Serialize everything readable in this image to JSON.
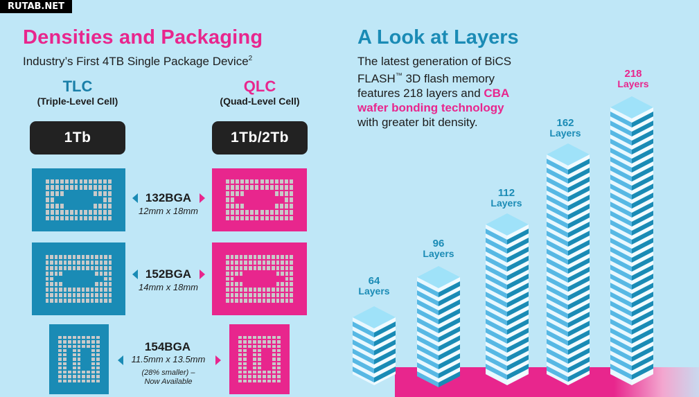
{
  "watermark": "RUTAB.NET",
  "left": {
    "title": "Densities and Packaging",
    "subtitle": "Industry’s First 4TB Single Package Device",
    "subtitle_sup": "2",
    "tlc": {
      "name": "TLC",
      "desc": "(Triple-Level Cell)",
      "capacity": "1Tb",
      "color": "#1a8bb5"
    },
    "qlc": {
      "name": "QLC",
      "desc": "(Quad-Level Cell)",
      "capacity": "1Tb/2Tb",
      "color": "#e8268d"
    },
    "packages": [
      {
        "name": "132BGA",
        "dims": "12mm x 18mm",
        "note": ""
      },
      {
        "name": "152BGA",
        "dims": "14mm x 18mm",
        "note": ""
      },
      {
        "name": "154BGA",
        "dims": "11.5mm x 13.5mm",
        "note": "(28% smaller) –",
        "note2": "Now Available"
      }
    ]
  },
  "right": {
    "title": "A Look at Layers",
    "text_line1": "The latest generation of BiCS",
    "text_line2_a": "FLASH",
    "text_line2_tm": "™",
    "text_line2_b": " 3D flash memory",
    "text_line3_a": "features 218 layers and ",
    "text_line3_hl": "CBA",
    "text_line4_hl": "wafer bonding technology",
    "text_line5": "with greater bit density.",
    "towers": [
      {
        "num": "64",
        "unit": "Layers"
      },
      {
        "num": "96",
        "unit": "Layers"
      },
      {
        "num": "112",
        "unit": "Layers"
      },
      {
        "num": "162",
        "unit": "Layers"
      },
      {
        "num": "218",
        "unit": "Layers"
      }
    ]
  },
  "colors": {
    "background": "#bfe7f7",
    "pink": "#e8268d",
    "blue": "#1a8bb5",
    "dark": "#222222"
  }
}
